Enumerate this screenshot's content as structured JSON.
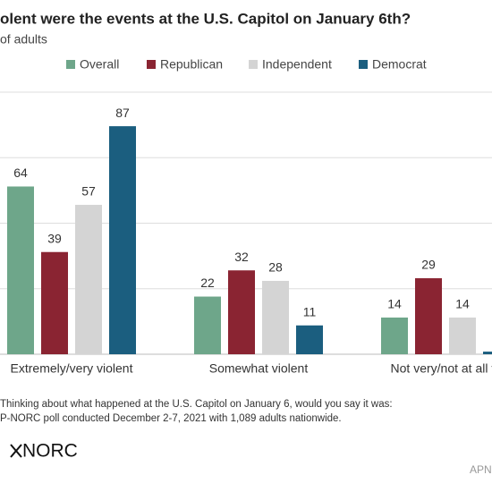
{
  "chart_data": {
    "type": "bar",
    "title": "olent were the events at the U.S. Capitol on January 6th?",
    "subtitle": "of adults",
    "categories": [
      "Extremely/very violent",
      "Somewhat violent",
      "Not very/not at all vi"
    ],
    "series": [
      {
        "name": "Overall",
        "color": "#6ea68a",
        "values": [
          64,
          22,
          14
        ]
      },
      {
        "name": "Republican",
        "color": "#8a2432",
        "values": [
          39,
          32,
          29
        ]
      },
      {
        "name": "Independent",
        "color": "#d4d4d4",
        "values": [
          57,
          28,
          14
        ]
      },
      {
        "name": "Democrat",
        "color": "#1b5e7f",
        "values": [
          87,
          11,
          1
        ]
      }
    ],
    "ylim": [
      0,
      100
    ],
    "yticks": [
      0,
      25,
      50,
      75,
      100
    ],
    "grid": true,
    "notes": [
      "Thinking about what happened at the U.S. Capitol on January 6, would you say it was:",
      "P-NORC poll conducted December 2-7, 2021 with 1,089 adults nationwide."
    ],
    "logo": "NORC",
    "credit": "APN"
  }
}
